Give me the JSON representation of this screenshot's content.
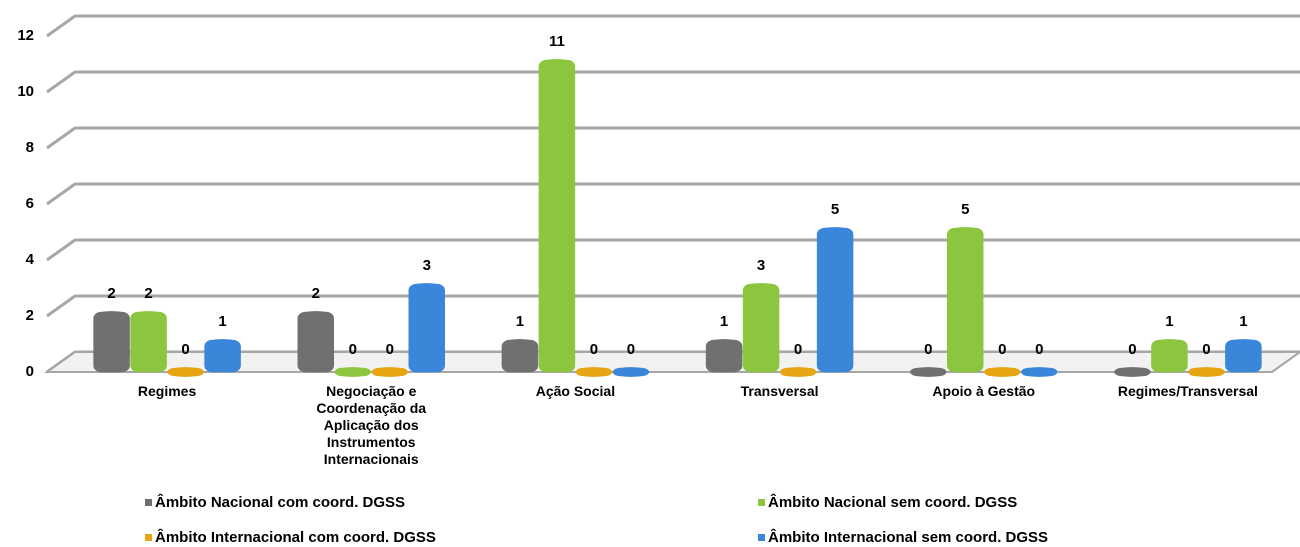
{
  "chart_data": {
    "type": "bar3d",
    "categories": [
      "Regimes",
      "Negociação e Coordenação da Aplicação dos Instrumentos Internacionais",
      "Ação Social",
      "Transversal",
      "Apoio à Gestão",
      "Regimes/Transversal"
    ],
    "series": [
      {
        "name": "Âmbito Nacional com coord. DGSS",
        "color": "#707070",
        "values": [
          2,
          2,
          1,
          1,
          0,
          0
        ]
      },
      {
        "name": "Âmbito Nacional sem coord. DGSS",
        "color": "#8cc63e",
        "values": [
          2,
          0,
          11,
          3,
          5,
          1
        ]
      },
      {
        "name": "Âmbito Internacional com coord. DGSS",
        "color": "#e6a514",
        "values": [
          0,
          0,
          0,
          0,
          0,
          0
        ]
      },
      {
        "name": "Âmbito Internacional sem coord. DGSS",
        "color": "#3b86d9",
        "values": [
          1,
          3,
          0,
          5,
          0,
          1
        ]
      }
    ],
    "ylim": [
      0,
      12
    ],
    "yticks": [
      0,
      2,
      4,
      6,
      8,
      10,
      12
    ],
    "grid": true,
    "legend": "bottom"
  }
}
